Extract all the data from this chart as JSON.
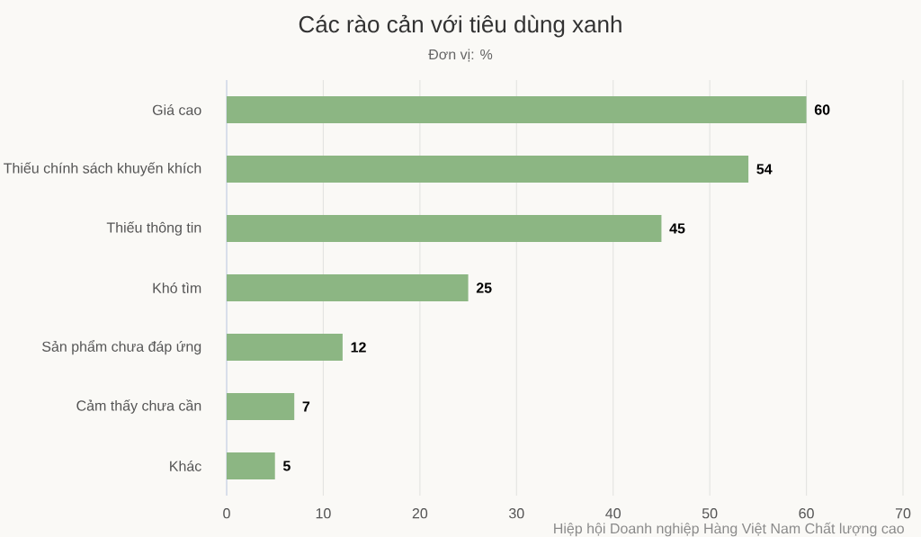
{
  "chart_data": {
    "type": "bar",
    "orientation": "horizontal",
    "title": "Các rào cản với tiêu dùng xanh",
    "subtitle": "Đơn vị: %",
    "categories": [
      "Giá cao",
      "Thiếu chính sách khuyến khích",
      "Thiếu thông tin",
      "Khó tìm",
      "Sản phẩm chưa đáp ứng",
      "Cảm thấy chưa cần",
      "Khác"
    ],
    "values": [
      60,
      54,
      45,
      25,
      12,
      7,
      5
    ],
    "color": "#8cb683",
    "xlim": [
      0,
      70
    ],
    "xticks": [
      0,
      10,
      20,
      30,
      40,
      50,
      60,
      70
    ],
    "grid": "x",
    "data_labels": true,
    "annotations": [
      "Hiệp hội Doanh nghiệp Hàng Việt Nam Chất lượng cao"
    ]
  }
}
